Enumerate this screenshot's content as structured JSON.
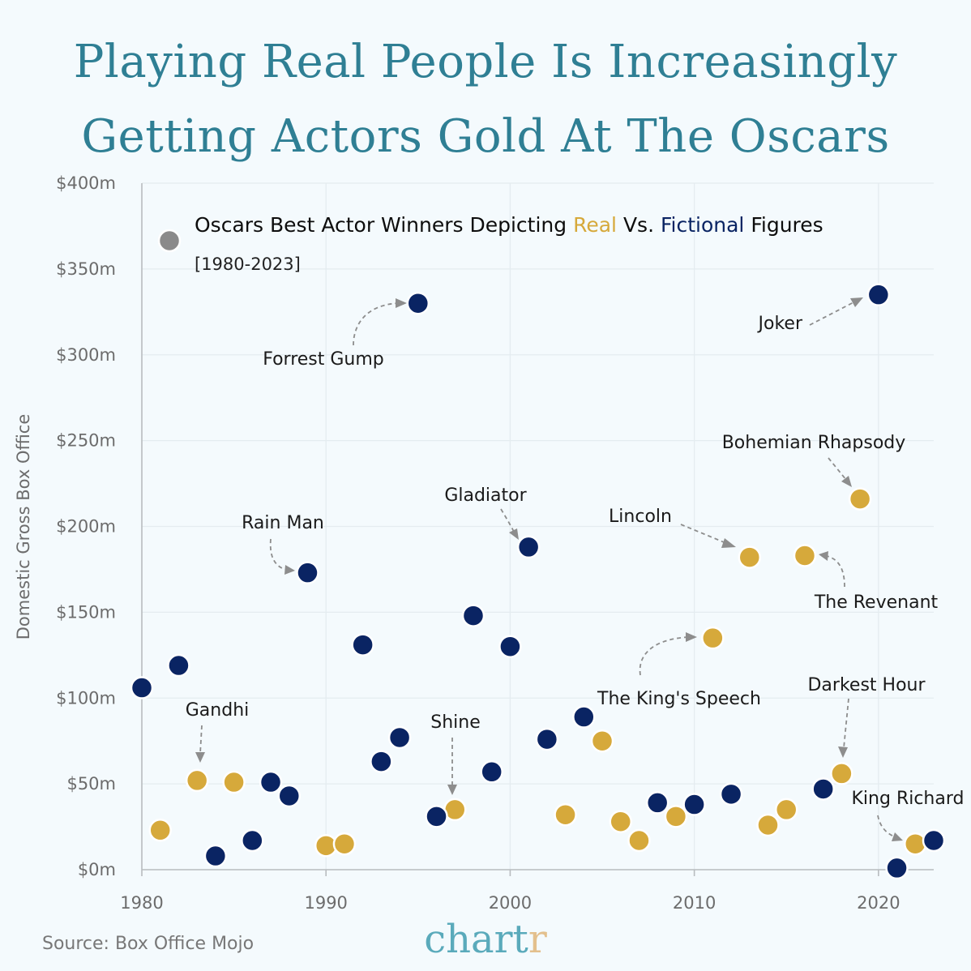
{
  "title": {
    "line1": "Playing Real People Is Increasingly",
    "line2": "Getting Actors Gold At The Oscars"
  },
  "legend": {
    "prefix": "Oscars Best Actor Winners Depicting ",
    "real": "Real",
    "middle": " Vs. ",
    "fictional": "Fictional",
    "suffix": " Figures",
    "subtitle": "[1980-2023]"
  },
  "source": "Source: Box Office Mojo",
  "brand": {
    "main": "chart",
    "accent": "r"
  },
  "colors": {
    "real": "#d6a93b",
    "fictional": "#0a2463",
    "title": "#2f7f94",
    "legend_marker": "#8a8a8a",
    "brand_main": "#5aaabb",
    "brand_accent": "#e3c08d"
  },
  "chart_data": {
    "type": "scatter",
    "title": "Playing Real People Is Increasingly Getting Actors Gold At The Oscars",
    "xlabel": "",
    "ylabel": "Domestic Gross Box Office",
    "xlim": [
      1980,
      2023
    ],
    "ylim": [
      0,
      400
    ],
    "x_ticks": [
      1980,
      1990,
      2000,
      2010,
      2020
    ],
    "y_ticks": [
      0,
      50,
      100,
      150,
      200,
      250,
      300,
      350,
      400
    ],
    "y_tick_labels": [
      "$0m",
      "$50m",
      "$100m",
      "$150m",
      "$200m",
      "$250m",
      "$300m",
      "$350m",
      "$400m"
    ],
    "series": [
      {
        "name": "Real",
        "points": [
          {
            "x": 1981,
            "y": 23
          },
          {
            "x": 1983,
            "y": 52,
            "label": "Gandhi"
          },
          {
            "x": 1985,
            "y": 51
          },
          {
            "x": 1990,
            "y": 14
          },
          {
            "x": 1991,
            "y": 15
          },
          {
            "x": 1997,
            "y": 35,
            "label": "Shine"
          },
          {
            "x": 2003,
            "y": 32
          },
          {
            "x": 2005,
            "y": 75
          },
          {
            "x": 2006,
            "y": 28
          },
          {
            "x": 2007,
            "y": 17
          },
          {
            "x": 2009,
            "y": 31
          },
          {
            "x": 2011,
            "y": 135,
            "label": "The King's Speech"
          },
          {
            "x": 2013,
            "y": 182,
            "label": "Lincoln"
          },
          {
            "x": 2014,
            "y": 26
          },
          {
            "x": 2015,
            "y": 35
          },
          {
            "x": 2016,
            "y": 183,
            "label": "The Revenant"
          },
          {
            "x": 2018,
            "y": 56,
            "label": "Darkest Hour"
          },
          {
            "x": 2019,
            "y": 216,
            "label": "Bohemian Rhapsody"
          },
          {
            "x": 2022,
            "y": 15,
            "label": "King Richard"
          }
        ]
      },
      {
        "name": "Fictional",
        "points": [
          {
            "x": 1980,
            "y": 106
          },
          {
            "x": 1982,
            "y": 119
          },
          {
            "x": 1984,
            "y": 8
          },
          {
            "x": 1986,
            "y": 17
          },
          {
            "x": 1987,
            "y": 51
          },
          {
            "x": 1988,
            "y": 43
          },
          {
            "x": 1989,
            "y": 173,
            "label": "Rain Man"
          },
          {
            "x": 1992,
            "y": 131
          },
          {
            "x": 1993,
            "y": 63
          },
          {
            "x": 1994,
            "y": 77
          },
          {
            "x": 1995,
            "y": 330,
            "label": "Forrest Gump"
          },
          {
            "x": 1996,
            "y": 31
          },
          {
            "x": 1998,
            "y": 148
          },
          {
            "x": 1999,
            "y": 57
          },
          {
            "x": 2000,
            "y": 130
          },
          {
            "x": 2001,
            "y": 188,
            "label": "Gladiator"
          },
          {
            "x": 2002,
            "y": 76
          },
          {
            "x": 2004,
            "y": 89
          },
          {
            "x": 2008,
            "y": 39
          },
          {
            "x": 2010,
            "y": 38
          },
          {
            "x": 2012,
            "y": 44
          },
          {
            "x": 2017,
            "y": 47
          },
          {
            "x": 2020,
            "y": 335,
            "label": "Joker"
          },
          {
            "x": 2021,
            "y": 1
          },
          {
            "x": 2023,
            "y": 17
          }
        ]
      }
    ]
  }
}
